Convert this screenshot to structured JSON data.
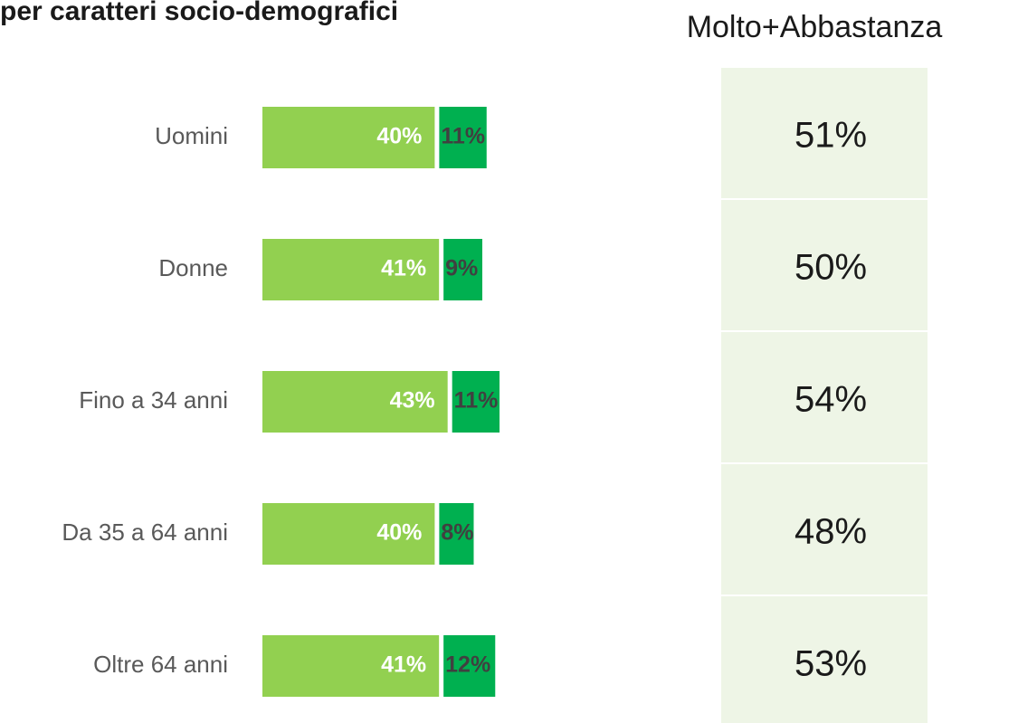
{
  "chart_data": {
    "type": "stacked-bar",
    "orientation": "horizontal",
    "title": "per caratteri socio-demografici",
    "categories": [
      "Uomini",
      "Donne",
      "Fino a 34 anni",
      "Da 35 a 64 anni",
      "Oltre 64 anni"
    ],
    "series": [
      {
        "color": "#92d050",
        "values": [
          40,
          41,
          43,
          40,
          41
        ],
        "value_labels": [
          "40%",
          "41%",
          "43%",
          "40%",
          "41%"
        ]
      },
      {
        "color": "#00b050",
        "values": [
          11,
          9,
          11,
          8,
          12
        ],
        "value_labels": [
          "11%",
          "9%",
          "11%",
          "8%",
          "12%"
        ]
      }
    ],
    "totals": {
      "header": "Molto+Abbastanza",
      "color": "#eef5e6",
      "values": [
        51,
        50,
        54,
        48,
        53
      ],
      "value_labels": [
        "51%",
        "50%",
        "54%",
        "48%",
        "53%"
      ]
    }
  }
}
